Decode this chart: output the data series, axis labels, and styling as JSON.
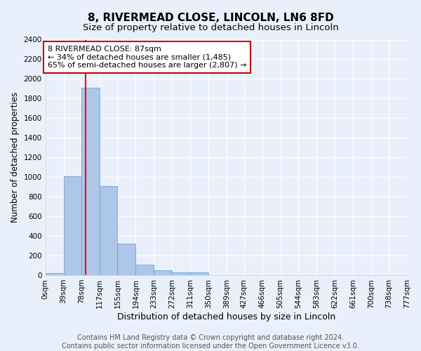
{
  "title": "8, RIVERMEAD CLOSE, LINCOLN, LN6 8FD",
  "subtitle": "Size of property relative to detached houses in Lincoln",
  "xlabel": "Distribution of detached houses by size in Lincoln",
  "ylabel": "Number of detached properties",
  "bin_labels": [
    "0sqm",
    "39sqm",
    "78sqm",
    "117sqm",
    "155sqm",
    "194sqm",
    "233sqm",
    "272sqm",
    "311sqm",
    "350sqm",
    "389sqm",
    "427sqm",
    "466sqm",
    "505sqm",
    "544sqm",
    "583sqm",
    "622sqm",
    "661sqm",
    "700sqm",
    "738sqm",
    "777sqm"
  ],
  "bar_values": [
    20,
    1010,
    1910,
    910,
    320,
    110,
    50,
    30,
    30,
    0,
    0,
    0,
    0,
    0,
    0,
    0,
    0,
    0,
    0,
    0
  ],
  "bar_color": "#aec6e8",
  "bar_edge_color": "#5a9fd4",
  "red_line_x": 87,
  "annotation_text": "8 RIVERMEAD CLOSE: 87sqm\n← 34% of detached houses are smaller (1,485)\n65% of semi-detached houses are larger (2,807) →",
  "annotation_box_color": "#ffffff",
  "annotation_box_edge_color": "#cc0000",
  "ylim": [
    0,
    2400
  ],
  "yticks": [
    0,
    200,
    400,
    600,
    800,
    1000,
    1200,
    1400,
    1600,
    1800,
    2000,
    2200,
    2400
  ],
  "bg_color": "#eaf0fb",
  "grid_color": "#ffffff",
  "footer_text": "Contains HM Land Registry data © Crown copyright and database right 2024.\nContains public sector information licensed under the Open Government Licence v3.0.",
  "title_fontsize": 11,
  "subtitle_fontsize": 9.5,
  "xlabel_fontsize": 9,
  "ylabel_fontsize": 8.5,
  "tick_fontsize": 7.5,
  "annotation_fontsize": 8,
  "footer_fontsize": 7,
  "bin_edges_sqm": [
    0,
    39,
    78,
    117,
    155,
    194,
    233,
    272,
    311,
    350,
    389,
    427,
    466,
    505,
    544,
    583,
    622,
    661,
    700,
    738,
    777
  ]
}
